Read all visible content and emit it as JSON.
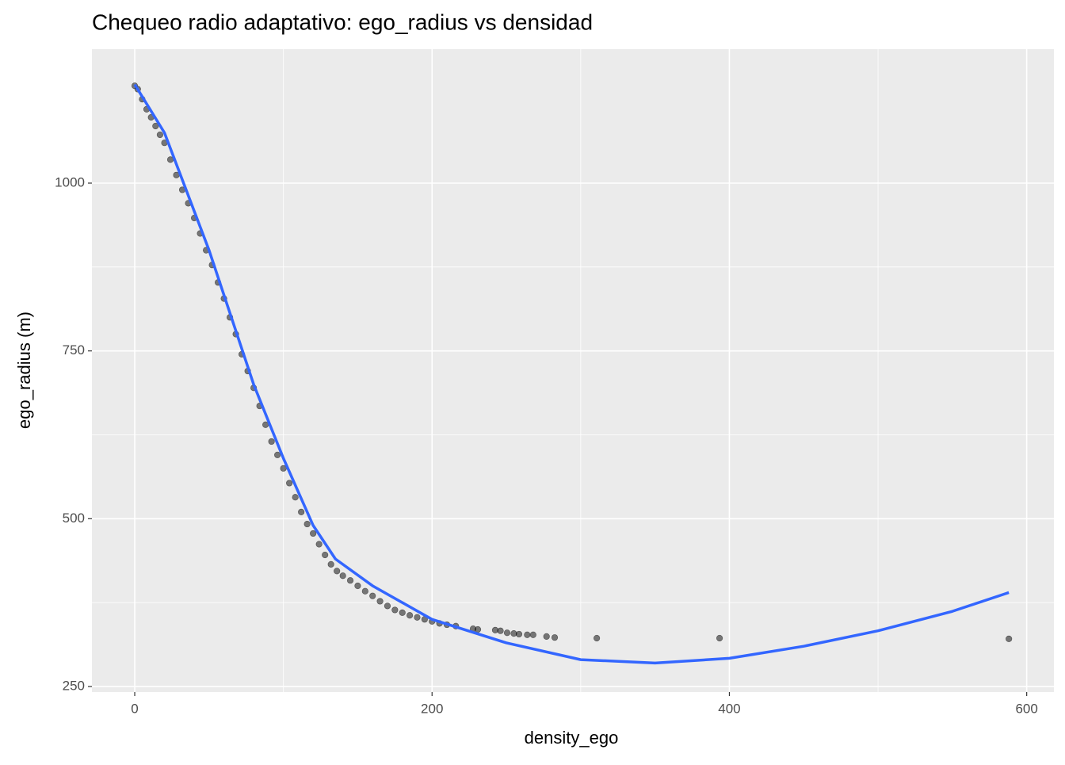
{
  "chart_data": {
    "type": "scatter",
    "title": "Chequeo radio adaptativo: ego_radius vs densidad",
    "x_label": "density_ego",
    "y_label": "ego_radius (m)",
    "xlim": [
      -28.8,
      618.3
    ],
    "ylim": [
      241.7,
      1199.6
    ],
    "xticks": [
      0,
      200,
      400,
      600
    ],
    "yticks": [
      250,
      500,
      750,
      1000
    ],
    "x_minor_grid": [
      100,
      300,
      500
    ],
    "y_minor_grid": [
      375,
      625,
      875
    ],
    "grid": true,
    "points": {
      "color": "#000000",
      "x": [
        0,
        2,
        5,
        8,
        11,
        14,
        17,
        20,
        24,
        28,
        32,
        36,
        40,
        44,
        48,
        52,
        56,
        60,
        64,
        68,
        72,
        76,
        80,
        84,
        88,
        92,
        96,
        100,
        104,
        108,
        112,
        116,
        120,
        124,
        128,
        132,
        136,
        140,
        145,
        150,
        155,
        160,
        165,
        170,
        175,
        180,
        185,
        190,
        195,
        200,
        205,
        210,
        216,
        227.6,
        230.8,
        242.5,
        246,
        250.5,
        255,
        258.5,
        264,
        268,
        277,
        282.5,
        310.8,
        393.4,
        588
      ],
      "y": [
        1145,
        1140,
        1125,
        1110,
        1098,
        1085,
        1072,
        1060,
        1035,
        1012,
        990,
        970,
        948,
        925,
        900,
        878,
        852,
        828,
        800,
        775,
        745,
        720,
        695,
        668,
        640,
        615,
        595,
        575,
        553,
        532,
        510,
        492,
        478,
        462,
        446,
        432,
        422,
        415,
        408,
        400,
        392,
        385,
        377,
        370,
        364,
        360,
        356,
        353,
        350,
        347,
        344,
        342,
        340,
        336,
        335,
        334,
        333,
        330,
        329,
        328,
        327,
        327,
        324.5,
        323,
        322,
        322,
        321
      ]
    },
    "smooth": {
      "color": "#3366FF",
      "x": [
        0,
        20,
        50,
        80,
        100,
        120,
        135,
        160,
        200,
        250,
        300,
        350,
        400,
        450,
        500,
        550,
        588
      ],
      "y": [
        1147,
        1075,
        900,
        700,
        590,
        490,
        440,
        400,
        350,
        315,
        290,
        285,
        292,
        310,
        333,
        362,
        390
      ]
    }
  }
}
